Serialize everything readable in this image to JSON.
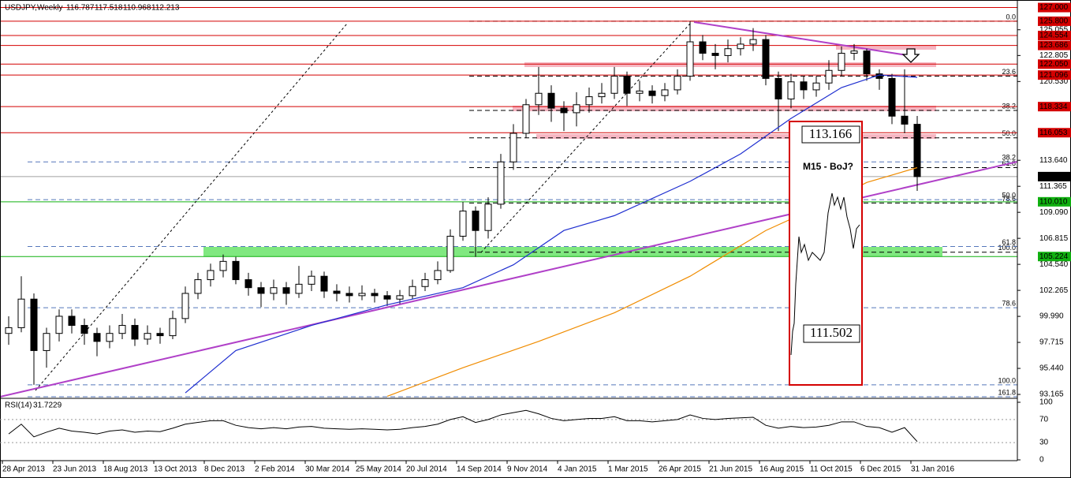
{
  "chart_data": {
    "type": "candlestick",
    "symbol": "USDJPY,Weekly",
    "candles": [
      [
        98.5,
        100,
        97.5,
        99.0
      ],
      [
        99.0,
        103.5,
        98.6,
        101.5
      ],
      [
        101.5,
        102.0,
        94.0,
        97.0
      ],
      [
        97.0,
        99.0,
        95.5,
        98.5
      ],
      [
        98.5,
        100.6,
        97.8,
        100.0
      ],
      [
        100.0,
        100.6,
        98.5,
        99.2
      ],
      [
        99.2,
        99.8,
        97.5,
        98.5
      ],
      [
        98.5,
        99.0,
        96.5,
        97.8
      ],
      [
        97.8,
        99.2,
        97.2,
        98.5
      ],
      [
        98.5,
        100.2,
        98.0,
        99.2
      ],
      [
        99.2,
        99.8,
        97.4,
        98.0
      ],
      [
        98.0,
        99.2,
        97.5,
        98.5
      ],
      [
        98.5,
        99.0,
        97.6,
        98.3
      ],
      [
        98.3,
        100.5,
        98.0,
        99.8
      ],
      [
        99.8,
        102.6,
        99.4,
        102.0
      ],
      [
        102.0,
        103.8,
        101.5,
        103.2
      ],
      [
        103.2,
        104.6,
        102.6,
        104.0
      ],
      [
        104.0,
        105.4,
        103.4,
        104.8
      ],
      [
        104.8,
        105.2,
        102.8,
        103.2
      ],
      [
        103.2,
        103.8,
        101.8,
        102.5
      ],
      [
        102.5,
        103.0,
        100.8,
        102.0
      ],
      [
        102.0,
        103.2,
        101.4,
        102.5
      ],
      [
        102.5,
        103.0,
        101.0,
        102.0
      ],
      [
        102.0,
        104.4,
        101.6,
        102.8
      ],
      [
        102.8,
        104.0,
        102.2,
        103.5
      ],
      [
        103.5,
        103.9,
        101.6,
        102.2
      ],
      [
        102.2,
        102.8,
        101.3,
        102.0
      ],
      [
        102.0,
        102.6,
        101.2,
        101.8
      ],
      [
        101.8,
        102.7,
        101.4,
        102.0
      ],
      [
        102.0,
        102.4,
        101.2,
        101.8
      ],
      [
        101.8,
        102.2,
        100.9,
        101.5
      ],
      [
        101.5,
        102.3,
        101.1,
        101.8
      ],
      [
        101.8,
        103.2,
        101.5,
        102.6
      ],
      [
        102.6,
        103.8,
        102.2,
        103.2
      ],
      [
        103.2,
        104.8,
        102.8,
        104.0
      ],
      [
        104.0,
        107.6,
        103.8,
        107.0
      ],
      [
        107.0,
        110.0,
        106.6,
        109.2
      ],
      [
        109.2,
        109.6,
        105.2,
        107.5
      ],
      [
        107.5,
        110.4,
        106.8,
        109.8
      ],
      [
        109.8,
        114.2,
        109.4,
        113.5
      ],
      [
        113.5,
        116.8,
        112.8,
        116.0
      ],
      [
        116.0,
        119.0,
        115.6,
        118.5
      ],
      [
        118.5,
        121.8,
        117.6,
        119.5
      ],
      [
        119.5,
        120.2,
        117.0,
        118.2
      ],
      [
        118.2,
        118.8,
        116.2,
        117.8
      ],
      [
        117.8,
        119.6,
        116.6,
        118.5
      ],
      [
        118.5,
        120.0,
        117.8,
        119.2
      ],
      [
        119.2,
        120.4,
        118.6,
        119.5
      ],
      [
        119.5,
        121.8,
        119.0,
        121.0
      ],
      [
        121.0,
        121.4,
        118.4,
        119.5
      ],
      [
        119.5,
        120.6,
        118.8,
        119.7
      ],
      [
        119.7,
        120.2,
        118.6,
        119.3
      ],
      [
        119.3,
        120.4,
        118.8,
        119.8
      ],
      [
        119.8,
        121.6,
        119.4,
        121.0
      ],
      [
        121.0,
        125.8,
        120.6,
        124.0
      ],
      [
        124.0,
        124.6,
        122.4,
        123.0
      ],
      [
        123.0,
        123.8,
        121.6,
        122.8
      ],
      [
        122.8,
        124.2,
        122.2,
        123.4
      ],
      [
        123.4,
        124.4,
        122.8,
        123.8
      ],
      [
        123.8,
        125.2,
        123.2,
        124.2
      ],
      [
        124.2,
        124.6,
        120.2,
        120.8
      ],
      [
        120.8,
        121.4,
        116.2,
        119.0
      ],
      [
        119.0,
        121.2,
        118.2,
        120.5
      ],
      [
        120.5,
        121.0,
        119.0,
        119.8
      ],
      [
        119.8,
        121.0,
        119.2,
        120.4
      ],
      [
        120.4,
        122.4,
        119.8,
        121.5
      ],
      [
        121.5,
        123.6,
        121.0,
        123.0
      ],
      [
        123.0,
        123.8,
        122.4,
        123.2
      ],
      [
        123.2,
        123.4,
        120.6,
        121.2
      ],
      [
        121.2,
        121.6,
        119.8,
        120.8
      ],
      [
        120.8,
        121.2,
        116.8,
        117.5
      ],
      [
        117.5,
        121.6,
        116.0,
        116.8
      ],
      [
        116.787,
        117.518,
        110.968,
        112.213
      ]
    ],
    "ylim": [
      92.96,
      127.52
    ],
    "yticks": [
      125.055,
      122.805,
      {
        "value": 120.53,
        "label": "120.530"
      },
      {
        "value": 113.64,
        "label": "113.640"
      },
      111.365,
      {
        "value": 109.09,
        "label": "109.090"
      },
      106.815,
      {
        "value": 104.54,
        "label": "104.540"
      },
      102.265,
      {
        "value": 99.99,
        "label": "99.990"
      },
      97.715,
      {
        "value": 95.44,
        "label": "95.440"
      },
      93.165
    ],
    "levels": [
      {
        "value": 127,
        "label": "127.000",
        "color": "#d40000"
      },
      {
        "value": 125.8,
        "label": "125.800",
        "color": "#d40000"
      },
      {
        "value": 124.554,
        "color": "#d40000"
      },
      {
        "value": 123.686,
        "color": "#d40000"
      },
      {
        "value": 122.05,
        "label": "122.050",
        "color": "#d40000"
      },
      {
        "value": 121.096,
        "color": "#d40000"
      },
      {
        "value": 118.334,
        "color": "#d40000"
      },
      {
        "value": 116.053,
        "color": "#d40000"
      },
      {
        "value": 112.213,
        "color": "#000000"
      },
      {
        "value": 110.01,
        "label": "110.010",
        "color": "#10b010"
      },
      {
        "value": 105.224,
        "color": "#10b010"
      }
    ],
    "fibs": [
      {
        "label": "0.0",
        "price": 125.8,
        "color": "#000000"
      },
      {
        "label": "23.6",
        "price": 121.0,
        "color": "#000000"
      },
      {
        "label": "38.2",
        "price": 118.0,
        "color": "#000000"
      },
      {
        "label": "50.0",
        "price": 115.6,
        "color": "#000000"
      },
      {
        "label": "61.8",
        "price": 113.0,
        "color": "#000000"
      },
      {
        "label": "78.6",
        "price": 109.9,
        "color": "#000000"
      },
      {
        "label": "100.0",
        "price": 105.6,
        "color": "#000000"
      },
      {
        "label": "38.2",
        "price": 113.5,
        "color": "#5577bb"
      },
      {
        "label": "50.0",
        "price": 110.2,
        "color": "#5577bb"
      },
      {
        "label": "61.8",
        "price": 106.1,
        "color": "#5577bb"
      },
      {
        "label": "78.6",
        "price": 100.75,
        "color": "#5577bb"
      },
      {
        "label": "100.0",
        "price": 94.0,
        "color": "#5577bb"
      },
      {
        "label": "161.8",
        "price": 92.96,
        "color": "#5577bb"
      }
    ],
    "moving_averages": [
      {
        "color": "#1f2fd0",
        "x": [
          14,
          18,
          24,
          30,
          36,
          40,
          44,
          48,
          54,
          58,
          62,
          66,
          69,
          72
        ],
        "values": [
          93.3,
          97.0,
          99.2,
          101.0,
          102.5,
          104.5,
          107.5,
          108.8,
          111.8,
          114.2,
          117.3,
          120.0,
          121.1,
          120.9
        ]
      },
      {
        "color": "#f08c00",
        "x": [
          30,
          36,
          42,
          48,
          54,
          60,
          64,
          68,
          72
        ],
        "values": [
          93.0,
          95.5,
          97.8,
          100.3,
          103.5,
          107.5,
          109.5,
          111.7,
          113.0
        ]
      }
    ],
    "inset": {
      "title": "M15 - BoJ?",
      "high": 113.166,
      "low": 111.502
    },
    "categories": [
      "28 Apr 2013",
      "23 Jun 2013",
      "18 Aug 2013",
      "13 Oct 2013",
      "8 Dec 2013",
      "2 Feb 2014",
      "30 Mar 2014",
      "25 May 2014",
      "20 Jul 2014",
      "14 Sep 2014",
      "9 Nov 2014",
      "4 Jan 2015",
      "1 Mar 2015",
      "26 Apr 2015",
      "21 Jun 2015",
      "16 Aug 2015",
      "11 Oct 2015",
      "6 Dec 2015",
      "31 Jan 2016"
    ],
    "rsi": {
      "title": "RSI(14)",
      "ylim": [
        0,
        100
      ],
      "yticks": [
        100,
        70,
        30,
        0
      ],
      "values": [
        45,
        62,
        40,
        48,
        55,
        50,
        48,
        45,
        50,
        52,
        48,
        50,
        49,
        55,
        62,
        65,
        68,
        68,
        60,
        56,
        54,
        56,
        54,
        57,
        58,
        55,
        54,
        53,
        54,
        53,
        52,
        53,
        56,
        58,
        62,
        70,
        75,
        65,
        70,
        78,
        82,
        86,
        80,
        72,
        68,
        70,
        72,
        72,
        75,
        68,
        68,
        66,
        68,
        70,
        78,
        72,
        70,
        72,
        73,
        74,
        60,
        55,
        58,
        56,
        57,
        60,
        66,
        66,
        58,
        56,
        48,
        56,
        31.7229
      ]
    }
  }
}
